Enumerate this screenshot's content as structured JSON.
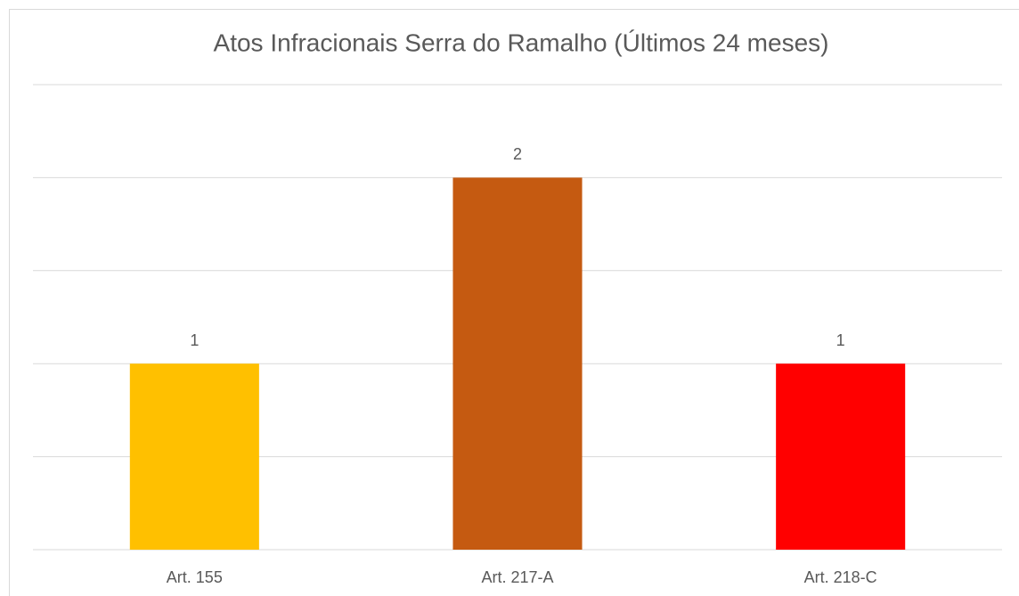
{
  "chart_data": {
    "type": "bar",
    "title": "Atos Infracionais Serra do Ramalho (Últimos 24 meses)",
    "categories": [
      "Art. 155",
      "Art. 217-A",
      "Art. 218-C"
    ],
    "values": [
      1,
      2,
      1
    ],
    "colors": [
      "#ffc000",
      "#c55a11",
      "#ff0000"
    ],
    "ylim": [
      0,
      2.5
    ],
    "yticks": [
      0,
      0.5,
      1,
      1.5,
      2,
      2.5
    ],
    "grid": true
  }
}
